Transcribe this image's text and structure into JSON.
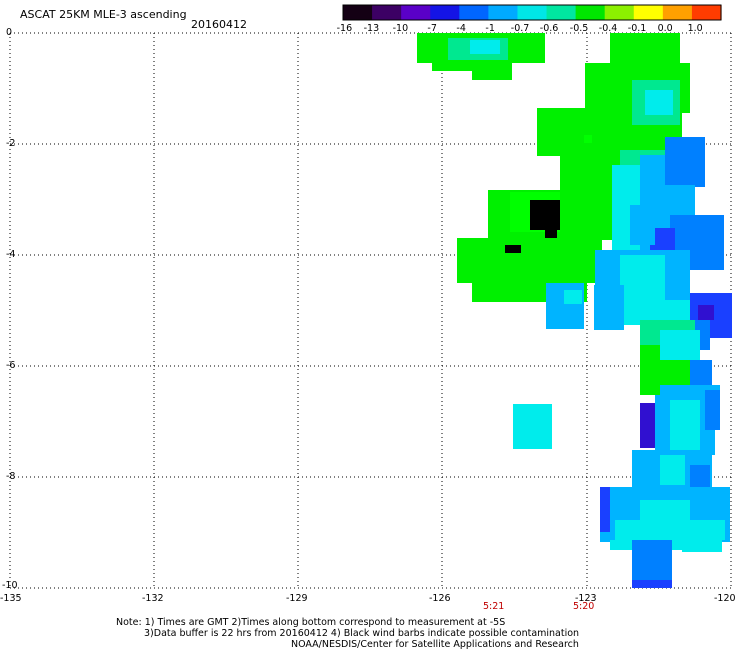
{
  "title": "ASCAT 25KM MLE-3 ascending",
  "date": "20160412",
  "colorbar": {
    "labels": [
      "-16",
      "-13",
      "-10",
      "-7",
      "-4",
      "-1",
      "-0.7",
      "-0.6",
      "-0.5",
      "-0.4",
      "-0.1",
      "0.0",
      "1.0"
    ],
    "colors": [
      "#140014",
      "#3c0064",
      "#5a00c8",
      "#1414e6",
      "#0066ff",
      "#00aaff",
      "#00e6e6",
      "#00e6a0",
      "#00e600",
      "#8cf000",
      "#ffff00",
      "#ffa000",
      "#ff3c00"
    ]
  },
  "axes": {
    "x_ticks": [
      "-135",
      "-132",
      "-129",
      "-126",
      "-123",
      "-120"
    ],
    "y_ticks": [
      "0",
      "-2",
      "-4",
      "-6",
      "-8",
      "-10"
    ],
    "lon_range": [
      -135,
      -120
    ],
    "lat_range": [
      0,
      -10
    ]
  },
  "times": [
    "5:21",
    "5:20"
  ],
  "notes": {
    "line1": "Note: 1) Times are GMT 2)Times along bottom correspond to measurement at -5S",
    "line2": "3)Data buffer is 22 hrs from 20160412 4) Black wind barbs indicate possible contamination",
    "line3": "NOAA/NESDIS/Center for Satellite Applications and Research"
  },
  "colors": {
    "green": "#00f000",
    "bright_green": "#00ff00",
    "light_green": "#00e890",
    "cyan": "#00ecec",
    "sky_blue": "#00b4ff",
    "blue": "#0080ff",
    "deep_blue": "#1a40ff",
    "violet": "#3010d0",
    "time_red": "#c00000"
  }
}
